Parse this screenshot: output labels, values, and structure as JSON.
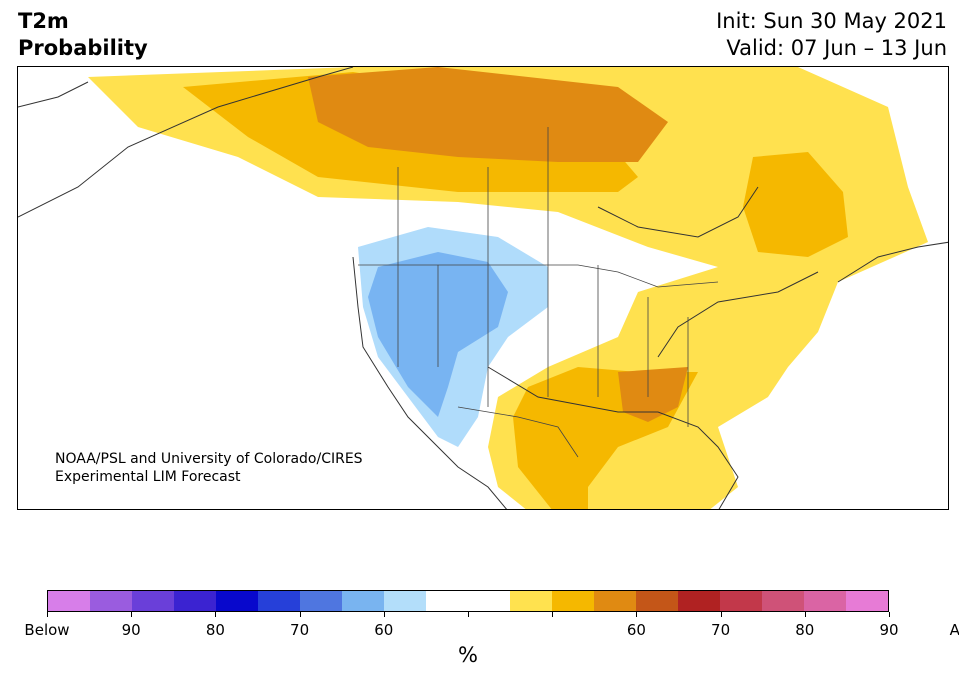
{
  "header": {
    "title_line1": "T2m",
    "title_line2": "Probability",
    "init_text": "Init: Sun 30 May 2021",
    "valid_text": "Valid: 07 Jun – 13 Jun"
  },
  "credit": {
    "line1": "NOAA/PSL and University of Colorado/CIRES",
    "line2": "Experimental LIM Forecast"
  },
  "map": {
    "region": "North America",
    "colors": {
      "land": "#ffffff",
      "water": "#ffffff",
      "borders": "#333333",
      "above_60_70": "#f5b800",
      "above_50_60": "#ffe14f",
      "above_70_80": "#e08a12",
      "below_50_60": "#b0dcfb",
      "below_60_70": "#78b4f2"
    }
  },
  "colorbar": {
    "colors": [
      "#d77ee9",
      "#9a5cdf",
      "#6a3fd9",
      "#3b23d1",
      "#0808cc",
      "#2640d9",
      "#4f76e0",
      "#79b4f0",
      "#b3defa",
      "#ffffff",
      "#ffffff",
      "#ffe24f",
      "#f5b800",
      "#e08a12",
      "#c45618",
      "#b02222",
      "#c2384a",
      "#cf5278",
      "#da64a4",
      "#e77bd6"
    ],
    "labels": [
      "Below",
      "90",
      "80",
      "70",
      "60",
      "",
      "",
      "60",
      "70",
      "80",
      "90",
      "Above"
    ],
    "units": "%"
  }
}
